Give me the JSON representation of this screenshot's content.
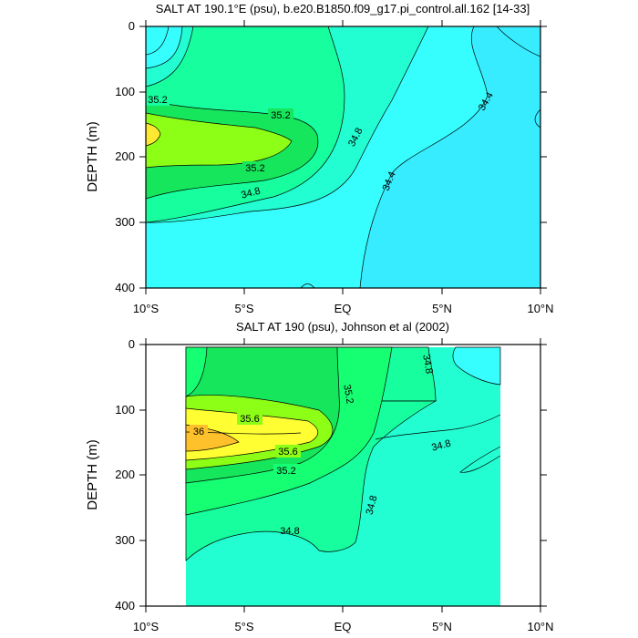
{
  "chart_data": [
    {
      "type": "contour",
      "title": "SALT AT 190.1°E (psu), b.e20.B1850.f09_g17.pi_control.all.162 [14-33]",
      "ylabel": "DEPTH (m)",
      "xlabel": "",
      "xlim": [
        -10,
        10
      ],
      "ylim": [
        400,
        0
      ],
      "x_ticks": [
        {
          "value": -10,
          "label": "10°S"
        },
        {
          "value": -5,
          "label": "5°S"
        },
        {
          "value": 0,
          "label": "EQ"
        },
        {
          "value": 5,
          "label": "5°N"
        },
        {
          "value": 10,
          "label": "10°N"
        }
      ],
      "y_ticks": [
        0,
        100,
        200,
        300,
        400
      ],
      "contour_levels": [
        34.0,
        34.2,
        34.4,
        34.6,
        34.8,
        35.0,
        35.2,
        35.4,
        35.6,
        35.8,
        36.0
      ],
      "contour_labels": [
        {
          "text": "35.2",
          "x": -9.4,
          "y": 113
        },
        {
          "text": "35.2",
          "x": -3.3,
          "y": 133
        },
        {
          "text": "35.2",
          "x": -4.3,
          "y": 218
        },
        {
          "text": "34.8",
          "x": 0.9,
          "y": 172
        },
        {
          "text": "34.8",
          "x": -5.5,
          "y": 255
        },
        {
          "text": "34.4",
          "x": 2.5,
          "y": 245
        },
        {
          "text": "34.4",
          "x": 7.2,
          "y": 120
        }
      ]
    },
    {
      "type": "contour",
      "title": "SALT AT 190 (psu), Johnson et al (2002)",
      "ylabel": "DEPTH (m)",
      "xlabel": "",
      "xlim": [
        -10,
        10
      ],
      "ylim": [
        400,
        0
      ],
      "x_ticks": [
        {
          "value": -10,
          "label": "10°S"
        },
        {
          "value": -5,
          "label": "5°S"
        },
        {
          "value": 0,
          "label": "EQ"
        },
        {
          "value": 5,
          "label": "5°N"
        },
        {
          "value": 10,
          "label": "10°N"
        }
      ],
      "y_ticks": [
        0,
        100,
        200,
        300,
        400
      ],
      "data_extent_x": [
        -8,
        8
      ],
      "contour_levels": [
        34.6,
        34.8,
        35.0,
        35.2,
        35.4,
        35.6,
        35.8,
        36.0
      ],
      "contour_labels": [
        {
          "text": "36",
          "x": -7.4,
          "y": 131
        },
        {
          "text": "35.6",
          "x": -4.9,
          "y": 102
        },
        {
          "text": "35.6",
          "x": -2.7,
          "y": 162
        },
        {
          "text": "35.2",
          "x": -2.9,
          "y": 191
        },
        {
          "text": "35.2",
          "x": 0.3,
          "y": 70
        },
        {
          "text": "34.8",
          "x": 4.2,
          "y": 30
        },
        {
          "text": "34.8",
          "x": 4.9,
          "y": 148
        },
        {
          "text": "34.8",
          "x": 1.6,
          "y": 247
        },
        {
          "text": "34.8",
          "x": -2.8,
          "y": 283
        }
      ]
    }
  ]
}
